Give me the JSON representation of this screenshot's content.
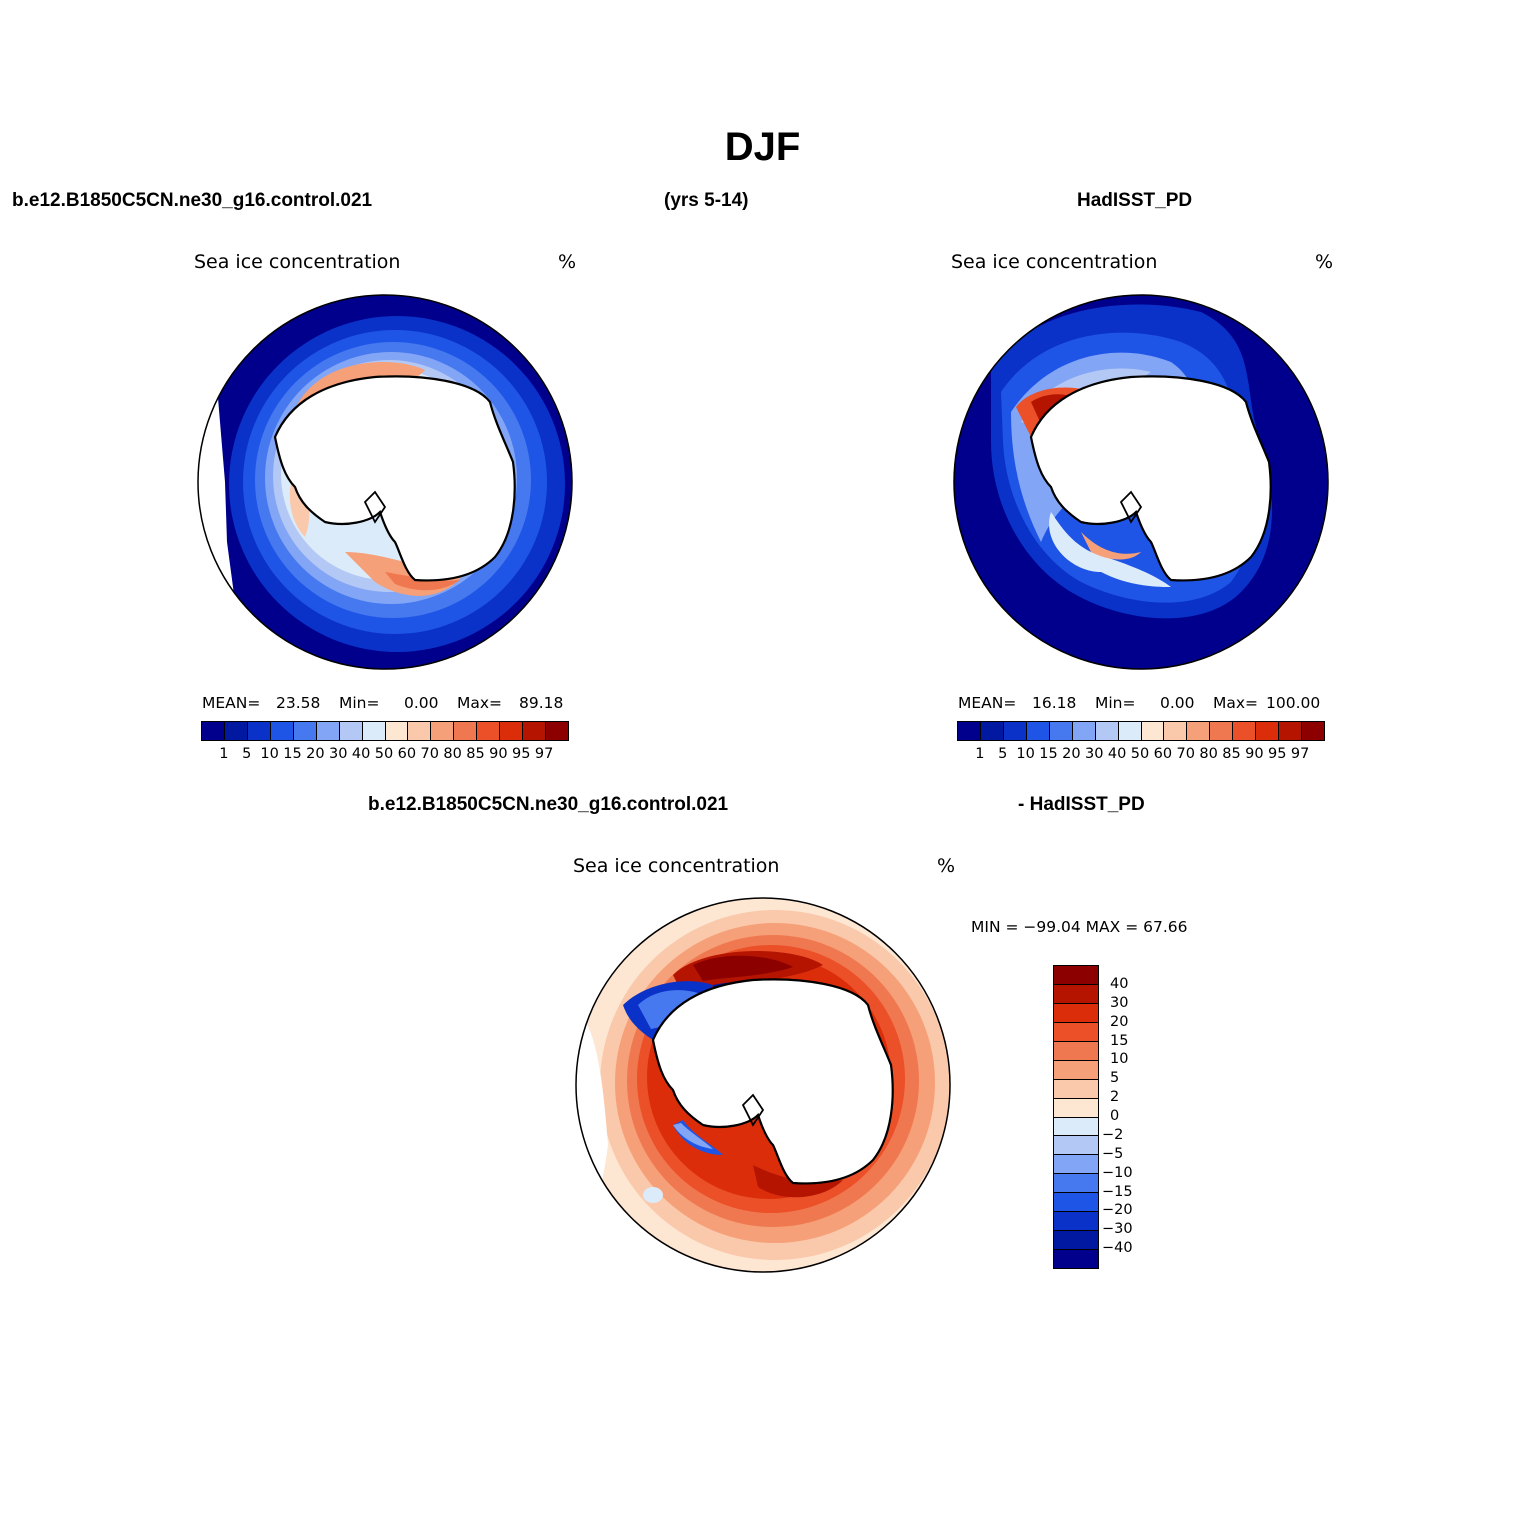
{
  "figure": {
    "season": "DJF",
    "case_label": "b.e12.B1850C5CN.ne30_g16.control.021",
    "years_label": "(yrs 5-14)",
    "obs_label": "HadISST_PD",
    "diff_case_label": "b.e12.B1850C5CN.ne30_g16.control.021",
    "diff_obs_label": "- HadISST_PD"
  },
  "panels": [
    {
      "title": "Sea ice concentration",
      "units": "%",
      "mean_label": "MEAN=",
      "mean_value": "23.58",
      "min_label": "Min=",
      "min_value": "0.00",
      "max_label": "Max=",
      "max_value": "89.18"
    },
    {
      "title": "Sea ice concentration",
      "units": "%",
      "mean_label": "MEAN=",
      "mean_value": "16.18",
      "min_label": "Min=",
      "min_value": "0.00",
      "max_label": "Max=",
      "max_value": "100.00"
    },
    {
      "title": "Sea ice concentration",
      "units": "%",
      "minmax_text": "MIN = −99.04 MAX =   67.66"
    }
  ],
  "colorbar_abs": {
    "levels": [
      "1",
      "5",
      "10",
      "15",
      "20",
      "30",
      "40",
      "50",
      "60",
      "70",
      "80",
      "85",
      "90",
      "95",
      "97"
    ],
    "colors": [
      "#00008c",
      "#0019a0",
      "#0a32c8",
      "#1e55e6",
      "#4678f0",
      "#82a5f5",
      "#b4c8f5",
      "#dcebfa",
      "#fde6d2",
      "#fac8aa",
      "#f5a078",
      "#f07850",
      "#eb5028",
      "#dc2d0a",
      "#b41400",
      "#8c0000"
    ]
  },
  "colorbar_diff": {
    "levels": [
      "40",
      "30",
      "20",
      "15",
      "10",
      "5",
      "2",
      "0",
      "−2",
      "−5",
      "−10",
      "−15",
      "−20",
      "−30",
      "−40"
    ],
    "colors": [
      "#8c0000",
      "#b41400",
      "#dc2d0a",
      "#eb5028",
      "#f07850",
      "#f5a078",
      "#fac8aa",
      "#fde6d2",
      "#dcebfa",
      "#b4c8f5",
      "#82a5f5",
      "#4678f0",
      "#1e55e6",
      "#0a32c8",
      "#0019a0",
      "#00008c"
    ]
  }
}
